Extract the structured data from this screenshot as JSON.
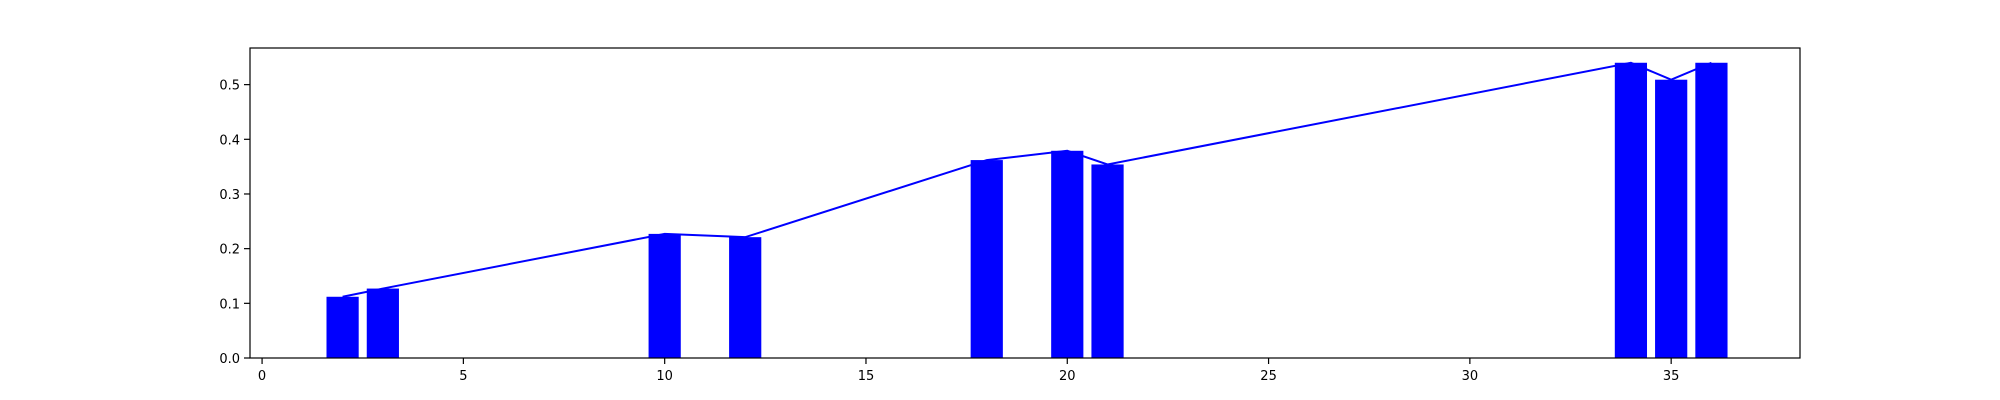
{
  "chart_data": {
    "type": "bar",
    "title": "",
    "xlabel": "",
    "ylabel": "",
    "xlim": [
      -0.3,
      38.2
    ],
    "ylim": [
      0,
      0.567
    ],
    "grid": false,
    "legend": "none",
    "bar_width": 0.8,
    "x": [
      2,
      3,
      10,
      12,
      18,
      20,
      21,
      34,
      35,
      36
    ],
    "values": [
      0.112,
      0.127,
      0.227,
      0.221,
      0.362,
      0.379,
      0.354,
      0.54,
      0.509,
      0.54
    ],
    "line_overlay": true,
    "xticks": [
      0,
      5,
      10,
      15,
      20,
      25,
      30,
      35
    ],
    "yticks": [
      0.0,
      0.1,
      0.2,
      0.3,
      0.4,
      0.5
    ],
    "colors": {
      "bar": "#0000ff",
      "line": "#0000ff",
      "axis": "#000000"
    }
  }
}
